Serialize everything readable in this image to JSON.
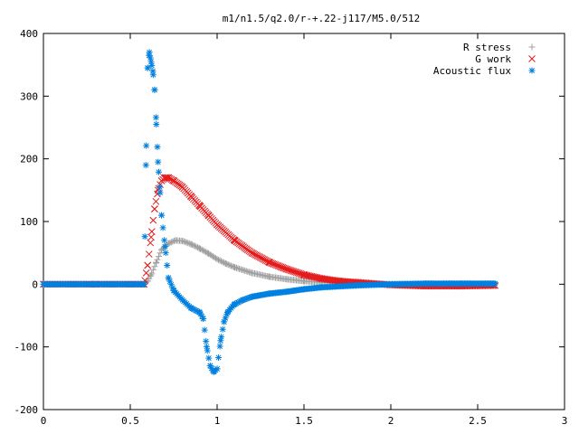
{
  "chart_data": {
    "type": "scatter",
    "title": "m1/n1.5/q2.0/r-+.22-j117/M5.0/512",
    "xlabel": "",
    "ylabel": "",
    "xlim": [
      0,
      3
    ],
    "ylim": [
      -200,
      400
    ],
    "x_ticks": [
      "0",
      "0.5",
      "1",
      "1.5",
      "2",
      "2.5",
      "3"
    ],
    "y_ticks": [
      "-200",
      "-100",
      "0",
      "100",
      "200",
      "300",
      "400"
    ],
    "grid": false,
    "legend_position": "top-right",
    "series": [
      {
        "name": "R stress",
        "marker": "plus",
        "color": "#a0a0a0",
        "x": [
          0,
          0.3,
          0.58,
          0.6,
          0.62,
          0.65,
          0.68,
          0.72,
          0.76,
          0.8,
          0.85,
          0.9,
          0.95,
          1.0,
          1.05,
          1.1,
          1.2,
          1.3,
          1.4,
          1.5,
          1.6,
          1.8,
          2.0,
          2.2,
          2.4,
          2.6
        ],
        "y": [
          0,
          0,
          0,
          5,
          15,
          35,
          55,
          65,
          70,
          69,
          64,
          57,
          49,
          40,
          33,
          27,
          18,
          12,
          8,
          5,
          3,
          1,
          0,
          0,
          0,
          0
        ]
      },
      {
        "name": "G work",
        "marker": "cross",
        "color": "#e41a1c",
        "x": [
          0,
          0.3,
          0.58,
          0.6,
          0.62,
          0.64,
          0.66,
          0.68,
          0.7,
          0.72,
          0.75,
          0.8,
          0.85,
          0.9,
          0.95,
          1.0,
          1.1,
          1.2,
          1.3,
          1.4,
          1.5,
          1.6,
          1.7,
          1.8,
          2.0,
          2.2,
          2.4,
          2.6
        ],
        "y": [
          0,
          0,
          0,
          30,
          75,
          120,
          150,
          165,
          170,
          170,
          165,
          155,
          140,
          125,
          110,
          95,
          70,
          50,
          35,
          24,
          15,
          9,
          5,
          3,
          -1,
          -3,
          -3,
          -2
        ]
      },
      {
        "name": "Acoustic flux",
        "marker": "star",
        "color": "#0080e0",
        "x": [
          0,
          0.3,
          0.58,
          0.59,
          0.6,
          0.61,
          0.62,
          0.63,
          0.64,
          0.65,
          0.66,
          0.67,
          0.68,
          0.7,
          0.72,
          0.75,
          0.8,
          0.85,
          0.9,
          0.92,
          0.94,
          0.96,
          0.98,
          1.0,
          1.02,
          1.04,
          1.06,
          1.08,
          1.1,
          1.15,
          1.2,
          1.3,
          1.4,
          1.5,
          1.6,
          1.8,
          2.0,
          2.2,
          2.4,
          2.6
        ],
        "y": [
          0,
          0,
          0,
          190,
          345,
          370,
          355,
          340,
          310,
          255,
          195,
          155,
          110,
          60,
          10,
          -10,
          -25,
          -38,
          -45,
          -55,
          -100,
          -130,
          -140,
          -135,
          -90,
          -60,
          -45,
          -38,
          -32,
          -25,
          -20,
          -15,
          -12,
          -8,
          -5,
          -2,
          0,
          1,
          1,
          1
        ]
      }
    ]
  }
}
